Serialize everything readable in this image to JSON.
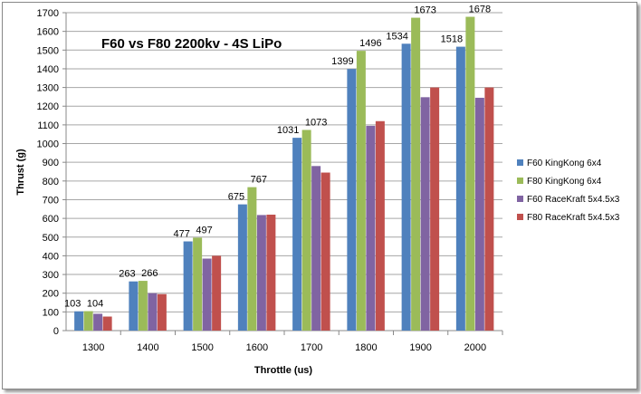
{
  "chart_data": {
    "type": "bar",
    "title": "F60 vs F80 2200kv - 4S LiPo",
    "xlabel": "Throttle (us)",
    "ylabel": "Thrust (g)",
    "ylim": [
      0,
      1700
    ],
    "yticks": [
      0,
      100,
      200,
      300,
      400,
      500,
      600,
      700,
      800,
      900,
      1000,
      1100,
      1200,
      1300,
      1400,
      1500,
      1600,
      1700
    ],
    "grid": true,
    "legend": "right",
    "categories": [
      "1300",
      "1400",
      "1500",
      "1600",
      "1700",
      "1800",
      "1900",
      "2000"
    ],
    "series": [
      {
        "name": "F60 KingKong 6x4",
        "color": "#4f81bd",
        "values": [
          103,
          263,
          477,
          675,
          1031,
          1399,
          1534,
          1518
        ],
        "labeled": true
      },
      {
        "name": "F80 KingKong 6x4",
        "color": "#9bbb59",
        "values": [
          104,
          266,
          497,
          767,
          1073,
          1496,
          1673,
          1678
        ],
        "labeled": true
      },
      {
        "name": "F60 RaceKraft 5x4.5x3",
        "color": "#8064a2",
        "values": [
          90,
          200,
          385,
          618,
          880,
          1095,
          1248,
          1245
        ],
        "labeled": false
      },
      {
        "name": "F80 RaceKraft 5x4.5x3",
        "color": "#c0504d",
        "values": [
          75,
          195,
          400,
          620,
          845,
          1120,
          1300,
          1300
        ],
        "labeled": false
      }
    ]
  }
}
